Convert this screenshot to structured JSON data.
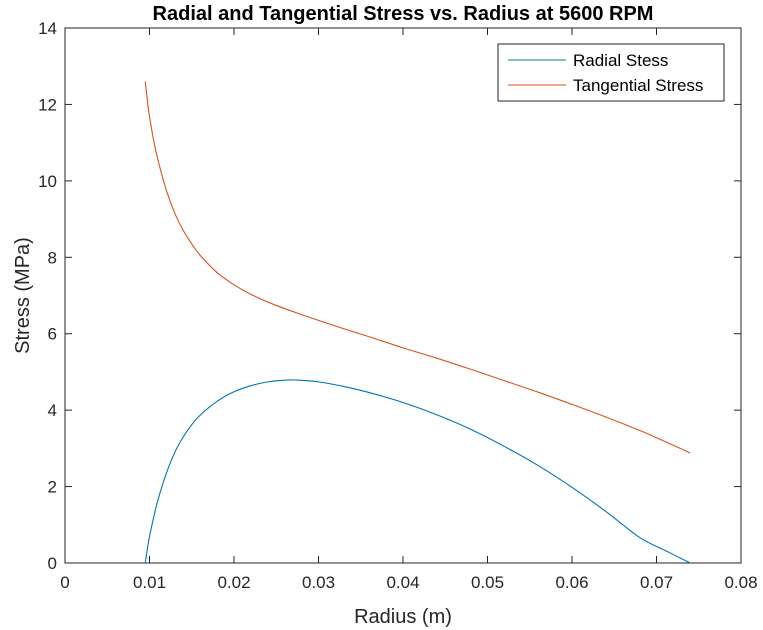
{
  "chart_data": {
    "type": "line",
    "title": "Radial and Tangential Stress vs. Radius at 5600 RPM",
    "xlabel": "Radius (m)",
    "ylabel": "Stress (MPa)",
    "xlim": [
      0,
      0.08
    ],
    "ylim": [
      0,
      14
    ],
    "xticks": [
      0,
      0.01,
      0.02,
      0.03,
      0.04,
      0.05,
      0.06,
      0.07,
      0.08
    ],
    "xtick_labels": [
      "0",
      "0.01",
      "0.02",
      "0.03",
      "0.04",
      "0.05",
      "0.06",
      "0.07",
      "0.08"
    ],
    "yticks": [
      0,
      2,
      4,
      6,
      8,
      10,
      12,
      14
    ],
    "ytick_labels": [
      "0",
      "2",
      "4",
      "6",
      "8",
      "10",
      "12",
      "14"
    ],
    "grid": false,
    "legend_position": "top-right",
    "series": [
      {
        "name": "Radial Stess",
        "color": "#0072BD",
        "legend_color": "#0b7d78",
        "x": [
          0.0095,
          0.0098,
          0.0101,
          0.0105,
          0.011,
          0.012,
          0.013,
          0.014,
          0.015,
          0.016,
          0.018,
          0.02,
          0.022,
          0.024,
          0.0265,
          0.028,
          0.03,
          0.033,
          0.036,
          0.04,
          0.044,
          0.048,
          0.052,
          0.056,
          0.06,
          0.064,
          0.068,
          0.071,
          0.074
        ],
        "y": [
          0.0,
          0.45,
          0.8,
          1.2,
          1.65,
          2.35,
          2.9,
          3.3,
          3.62,
          3.87,
          4.23,
          4.48,
          4.64,
          4.74,
          4.79,
          4.78,
          4.74,
          4.62,
          4.46,
          4.2,
          3.88,
          3.5,
          3.05,
          2.55,
          1.98,
          1.35,
          0.67,
          0.33,
          0.0
        ]
      },
      {
        "name": "Tangential Stress",
        "color": "#D95319",
        "x": [
          0.0095,
          0.0098,
          0.0101,
          0.0105,
          0.011,
          0.012,
          0.013,
          0.014,
          0.015,
          0.016,
          0.018,
          0.02,
          0.022,
          0.025,
          0.028,
          0.03,
          0.033,
          0.036,
          0.04,
          0.044,
          0.048,
          0.052,
          0.056,
          0.06,
          0.064,
          0.068,
          0.071,
          0.074
        ],
        "y": [
          12.6,
          12.0,
          11.55,
          11.05,
          10.55,
          9.75,
          9.15,
          8.7,
          8.35,
          8.05,
          7.6,
          7.28,
          7.03,
          6.74,
          6.5,
          6.35,
          6.13,
          5.92,
          5.63,
          5.36,
          5.07,
          4.77,
          4.47,
          4.15,
          3.82,
          3.47,
          3.18,
          2.88
        ]
      }
    ]
  }
}
